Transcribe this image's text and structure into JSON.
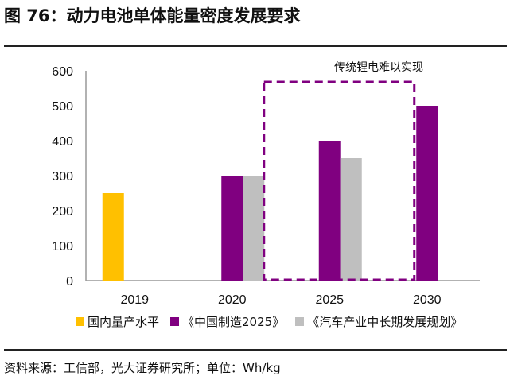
{
  "title": "图 76：动力电池单体能量密度发展要求",
  "source": "资料来源：工信部，光大证券研究所；单位：Wh/kg",
  "chart_data": {
    "type": "bar",
    "categories": [
      "2019",
      "2020",
      "2025",
      "2030"
    ],
    "series": [
      {
        "name": "国内量产水平",
        "color": "#FFC000",
        "values": [
          250,
          null,
          null,
          null
        ]
      },
      {
        "name": "《中国制造2025》",
        "color": "#800080",
        "values": [
          null,
          300,
          400,
          500
        ]
      },
      {
        "name": "《汽车产业中长期发展规划》",
        "color": "#BFBFBF",
        "values": [
          null,
          300,
          350,
          null
        ]
      }
    ],
    "ylim": [
      0,
      600
    ],
    "yticks": [
      "0",
      "100",
      "200",
      "300",
      "400",
      "500",
      "600"
    ],
    "annotation": "传统锂电难以实现",
    "annotation_box_categories": [
      "2025",
      "2030"
    ],
    "legend_position": "bottom",
    "grid": false
  }
}
